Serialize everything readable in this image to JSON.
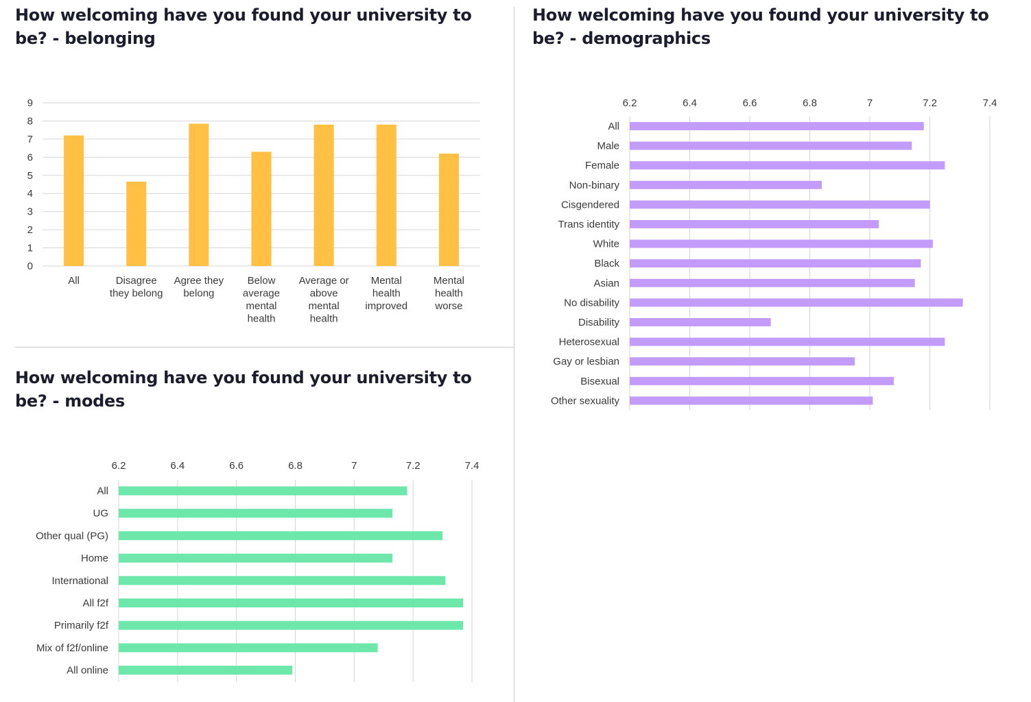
{
  "colors": {
    "belonging": "#ffc043",
    "demographics": "#c39bfa",
    "modes": "#6ee7ab",
    "grid": "#d6d6d6",
    "title": "#1b1c2e"
  },
  "chart_data": [
    {
      "id": "belonging",
      "type": "bar",
      "title": "How welcoming have you found your university to be? - belonging",
      "categories": [
        [
          "All"
        ],
        [
          "Disagree",
          "they belong"
        ],
        [
          "Agree they",
          "belong"
        ],
        [
          "Below",
          "average",
          "mental",
          "health"
        ],
        [
          "Average or",
          "above",
          "mental",
          "health"
        ],
        [
          "Mental",
          "health",
          "improved"
        ],
        [
          "Mental",
          "health",
          "worse"
        ]
      ],
      "values": [
        7.2,
        4.65,
        7.85,
        6.3,
        7.8,
        7.8,
        6.2
      ],
      "ylim": [
        0,
        9
      ],
      "yticks": [
        "0",
        "1",
        "2",
        "3",
        "4",
        "5",
        "6",
        "7",
        "8",
        "9"
      ],
      "grid": true
    },
    {
      "id": "demographics",
      "type": "bar",
      "orientation": "horizontal",
      "title": "How welcoming have you found your university to be? - demographics",
      "categories": [
        "All",
        "Male",
        "Female",
        "Non-binary",
        "Cisgendered",
        "Trans identity",
        "White",
        "Black",
        "Asian",
        "No disability",
        "Disability",
        "Heterosexual",
        "Gay or lesbian",
        "Bisexual",
        "Other sexuality"
      ],
      "values": [
        7.18,
        7.14,
        7.25,
        6.84,
        7.2,
        7.03,
        7.21,
        7.17,
        7.15,
        7.31,
        6.67,
        7.25,
        6.95,
        7.08,
        7.01
      ],
      "xlim": [
        6.2,
        7.4
      ],
      "xticks": [
        "6.2",
        "6.4",
        "6.6",
        "6.8",
        "7",
        "7.2",
        "7.4"
      ],
      "grid": true
    },
    {
      "id": "modes",
      "type": "bar",
      "orientation": "horizontal",
      "title": "How welcoming have you found your university to be? - modes",
      "categories": [
        "All",
        "UG",
        "Other qual (PG)",
        "Home",
        "International",
        "All f2f",
        "Primarily f2f",
        "Mix of f2f/online",
        "All online"
      ],
      "values": [
        7.18,
        7.13,
        7.3,
        7.13,
        7.31,
        7.37,
        7.37,
        7.08,
        6.79
      ],
      "xlim": [
        6.2,
        7.4
      ],
      "xticks": [
        "6.2",
        "6.4",
        "6.6",
        "6.8",
        "7",
        "7.2",
        "7.4"
      ],
      "grid": true
    }
  ]
}
